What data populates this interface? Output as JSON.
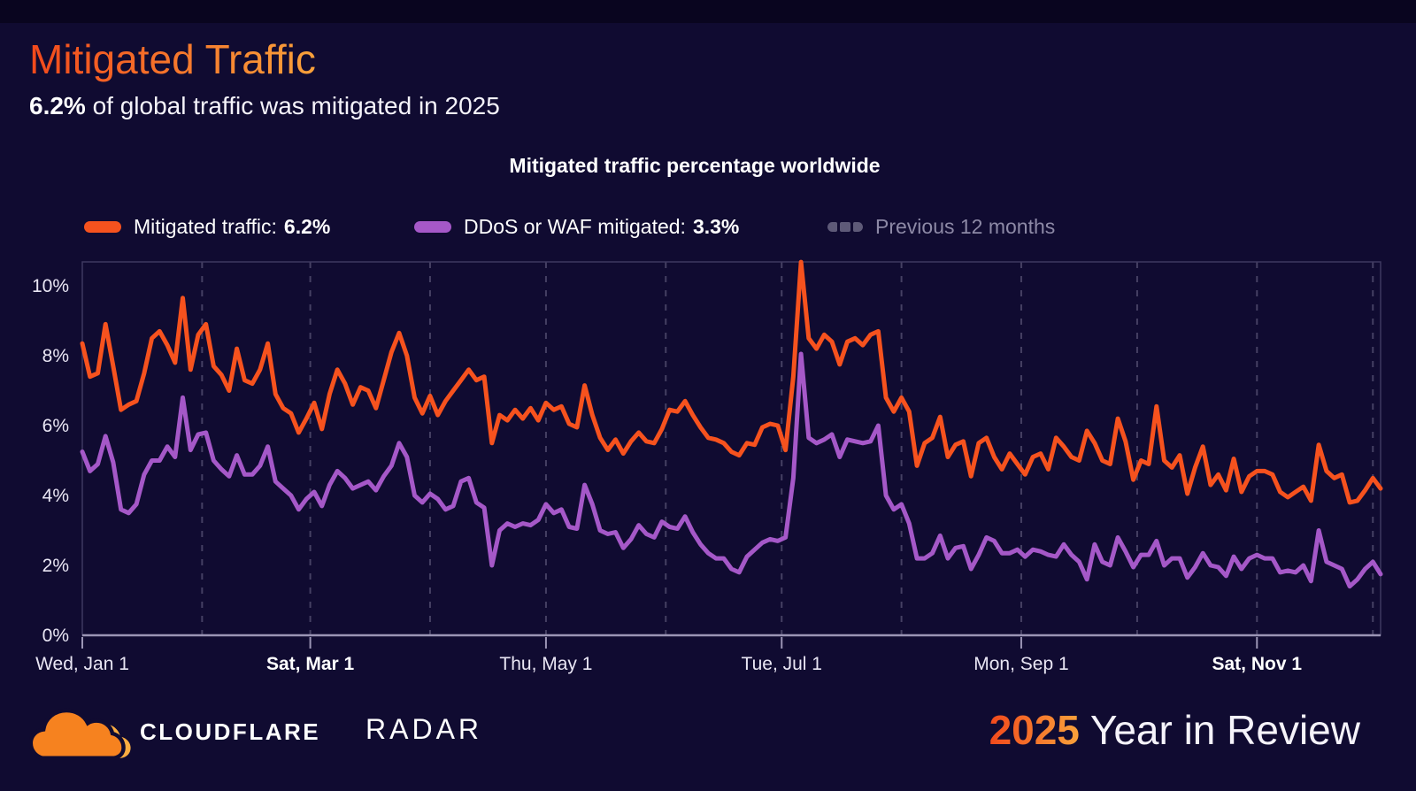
{
  "header": {
    "title": "Mitigated Traffic",
    "subtitle_bold": "6.2%",
    "subtitle_rest": " of global traffic was mitigated in 2025"
  },
  "colors": {
    "background": "#100B31",
    "mitigated_orange": "#F6521E",
    "ddos_waf_purple": "#A558C8",
    "previous_gray": "#5E5A78",
    "axis_line": "#9B95B5",
    "gridline": "#454063",
    "plot_border": "#3E3960",
    "title_gradient_start": "#F2491C",
    "title_gradient_end": "#F9A23B"
  },
  "chart_data": {
    "type": "line",
    "title": "Mitigated traffic percentage worldwide",
    "xlabel": "",
    "ylabel": "",
    "x_unit": "day of 2025 (0 = Jan 1)",
    "ylim": [
      0,
      10.7
    ],
    "grid": "vertical-dashed-monthly",
    "legend_position": "top-left",
    "y_ticks": [
      {
        "value": 0,
        "label": "0%"
      },
      {
        "value": 2,
        "label": "2%"
      },
      {
        "value": 4,
        "label": "4%"
      },
      {
        "value": 6,
        "label": "6%"
      },
      {
        "value": 8,
        "label": "8%"
      },
      {
        "value": 10,
        "label": "10%"
      }
    ],
    "x_ticks": [
      {
        "day": 0,
        "label": "Wed, Jan 1",
        "bold": false
      },
      {
        "day": 59,
        "label": "Sat, Mar 1",
        "bold": true
      },
      {
        "day": 120,
        "label": "Thu, May 1",
        "bold": false
      },
      {
        "day": 181,
        "label": "Tue, Jul 1",
        "bold": false
      },
      {
        "day": 243,
        "label": "Mon, Sep 1",
        "bold": false
      },
      {
        "day": 304,
        "label": "Sat, Nov 1",
        "bold": true
      }
    ],
    "month_gridlines_days": [
      31,
      59,
      90,
      120,
      151,
      181,
      212,
      243,
      273,
      304,
      334
    ],
    "legend": [
      {
        "label": "Mitigated traffic:",
        "value": "6.2%",
        "swatch": "orange-pill"
      },
      {
        "label": "DDoS or WAF mitigated:",
        "value": "3.3%",
        "swatch": "purple-pill"
      },
      {
        "label": "Previous 12 months",
        "value": "",
        "swatch": "gray-dashes"
      }
    ],
    "x": [
      0,
      2,
      4,
      6,
      8,
      10,
      12,
      14,
      16,
      18,
      20,
      22,
      24,
      26,
      28,
      30,
      32,
      34,
      36,
      38,
      40,
      42,
      44,
      46,
      48,
      50,
      52,
      54,
      56,
      58,
      60,
      62,
      64,
      66,
      68,
      70,
      72,
      74,
      76,
      78,
      80,
      82,
      84,
      86,
      88,
      90,
      92,
      94,
      96,
      98,
      100,
      102,
      104,
      106,
      108,
      110,
      112,
      114,
      116,
      118,
      120,
      122,
      124,
      126,
      128,
      130,
      132,
      134,
      136,
      138,
      140,
      142,
      144,
      146,
      148,
      150,
      152,
      154,
      156,
      158,
      160,
      162,
      164,
      166,
      168,
      170,
      172,
      174,
      176,
      178,
      180,
      182,
      184,
      186,
      188,
      190,
      192,
      194,
      196,
      198,
      200,
      202,
      204,
      206,
      208,
      210,
      212,
      214,
      216,
      218,
      220,
      222,
      224,
      226,
      228,
      230,
      232,
      234,
      236,
      238,
      240,
      242,
      244,
      246,
      248,
      250,
      252,
      254,
      256,
      258,
      260,
      262,
      264,
      266,
      268,
      270,
      272,
      274,
      276,
      278,
      280,
      282,
      284,
      286,
      288,
      290,
      292,
      294,
      296,
      298,
      300,
      302,
      304,
      306,
      308,
      310,
      312,
      314,
      316,
      318,
      320,
      322,
      324,
      326,
      328,
      330,
      332,
      334,
      336
    ],
    "series": [
      {
        "name": "Mitigated traffic",
        "legend_value": "6.2%",
        "color": "#F6521E",
        "values": [
          8.35,
          7.4,
          7.5,
          8.9,
          7.7,
          6.45,
          6.6,
          6.7,
          7.5,
          8.5,
          8.7,
          8.3,
          7.8,
          9.65,
          7.6,
          8.6,
          8.9,
          7.7,
          7.45,
          7.0,
          8.2,
          7.3,
          7.2,
          7.6,
          8.35,
          6.9,
          6.5,
          6.35,
          5.8,
          6.2,
          6.65,
          5.9,
          6.9,
          7.6,
          7.2,
          6.6,
          7.1,
          7.0,
          6.5,
          7.3,
          8.1,
          8.65,
          8.0,
          6.8,
          6.35,
          6.85,
          6.3,
          6.7,
          7.0,
          7.3,
          7.6,
          7.3,
          7.4,
          5.5,
          6.3,
          6.15,
          6.45,
          6.2,
          6.5,
          6.15,
          6.65,
          6.45,
          6.55,
          6.05,
          5.95,
          7.15,
          6.3,
          5.65,
          5.3,
          5.6,
          5.2,
          5.55,
          5.8,
          5.55,
          5.5,
          5.9,
          6.45,
          6.4,
          6.7,
          6.3,
          5.95,
          5.65,
          5.6,
          5.5,
          5.25,
          5.15,
          5.5,
          5.45,
          5.95,
          6.05,
          6.0,
          5.3,
          7.4,
          10.68,
          8.5,
          8.2,
          8.6,
          8.4,
          7.75,
          8.4,
          8.5,
          8.3,
          8.6,
          8.7,
          6.8,
          6.4,
          6.8,
          6.4,
          4.85,
          5.5,
          5.65,
          6.25,
          5.1,
          5.45,
          5.55,
          4.55,
          5.5,
          5.65,
          5.1,
          4.75,
          5.2,
          4.9,
          4.6,
          5.1,
          5.2,
          4.75,
          5.65,
          5.4,
          5.1,
          5.0,
          5.85,
          5.5,
          5.0,
          4.9,
          6.2,
          5.55,
          4.45,
          5.0,
          4.9,
          6.55,
          5.0,
          4.8,
          5.15,
          4.05,
          4.8,
          5.4,
          4.3,
          4.6,
          4.15,
          5.05,
          4.1,
          4.55,
          4.7,
          4.7,
          4.6,
          4.1,
          3.95,
          4.1,
          4.25,
          3.85,
          5.45,
          4.7,
          4.5,
          4.6,
          3.8,
          3.85,
          4.15,
          4.5,
          4.2
        ]
      },
      {
        "name": "DDoS or WAF mitigated",
        "legend_value": "3.3%",
        "color": "#A558C8",
        "values": [
          5.25,
          4.7,
          4.9,
          5.7,
          4.95,
          3.6,
          3.5,
          3.75,
          4.6,
          5.0,
          5.0,
          5.4,
          5.1,
          6.8,
          5.3,
          5.75,
          5.8,
          5.0,
          4.75,
          4.55,
          5.15,
          4.6,
          4.6,
          4.85,
          5.4,
          4.4,
          4.2,
          4.0,
          3.6,
          3.9,
          4.1,
          3.7,
          4.3,
          4.7,
          4.5,
          4.2,
          4.3,
          4.4,
          4.15,
          4.55,
          4.85,
          5.5,
          5.1,
          4.0,
          3.8,
          4.05,
          3.9,
          3.6,
          3.7,
          4.4,
          4.5,
          3.8,
          3.65,
          2.0,
          3.0,
          3.2,
          3.1,
          3.2,
          3.15,
          3.3,
          3.75,
          3.5,
          3.6,
          3.1,
          3.05,
          4.3,
          3.75,
          3.0,
          2.9,
          2.95,
          2.5,
          2.75,
          3.15,
          2.9,
          2.8,
          3.25,
          3.1,
          3.05,
          3.4,
          2.95,
          2.6,
          2.35,
          2.2,
          2.2,
          1.9,
          1.8,
          2.25,
          2.45,
          2.65,
          2.75,
          2.7,
          2.8,
          4.5,
          8.05,
          5.65,
          5.5,
          5.6,
          5.75,
          5.1,
          5.6,
          5.55,
          5.5,
          5.55,
          6.0,
          4.0,
          3.6,
          3.75,
          3.2,
          2.2,
          2.2,
          2.35,
          2.85,
          2.2,
          2.5,
          2.55,
          1.9,
          2.3,
          2.8,
          2.7,
          2.35,
          2.35,
          2.45,
          2.25,
          2.45,
          2.4,
          2.3,
          2.25,
          2.6,
          2.3,
          2.1,
          1.6,
          2.6,
          2.1,
          2.0,
          2.8,
          2.4,
          1.95,
          2.3,
          2.3,
          2.7,
          2.0,
          2.2,
          2.2,
          1.65,
          1.95,
          2.35,
          2.0,
          1.95,
          1.7,
          2.25,
          1.9,
          2.2,
          2.3,
          2.2,
          2.2,
          1.8,
          1.85,
          1.8,
          2.0,
          1.55,
          3.0,
          2.1,
          2.0,
          1.9,
          1.4,
          1.6,
          1.9,
          2.1,
          1.75
        ]
      }
    ]
  },
  "footer": {
    "brand": "CLOUDFLARE",
    "product": "RADAR",
    "year": "2025",
    "year_suffix": " Year in Review",
    "logo_orange": "#F6821F",
    "logo_light_orange": "#FBAD41"
  }
}
